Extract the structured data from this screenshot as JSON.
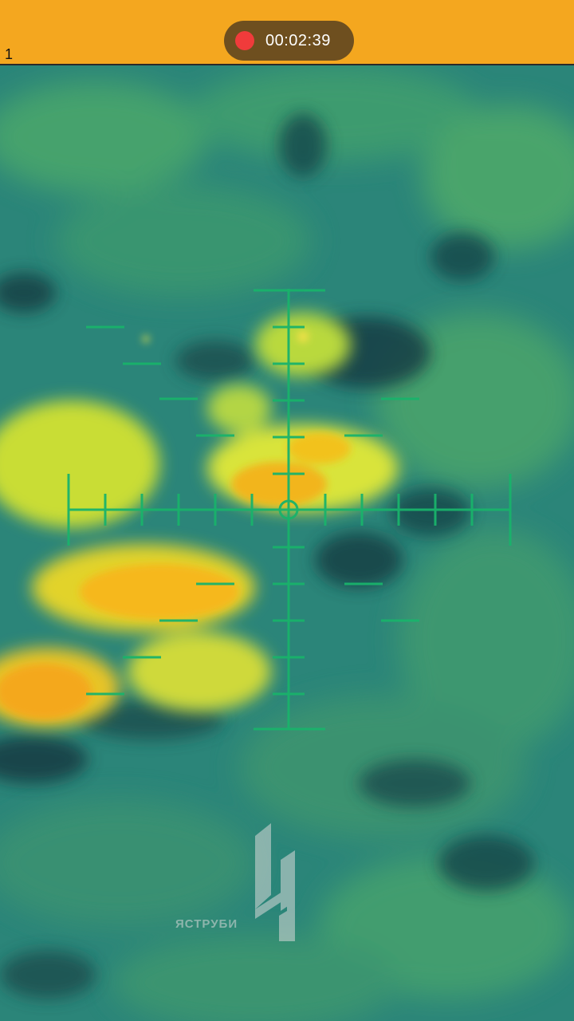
{
  "status_bar": {
    "corner_label": "1",
    "recording_time": "00:02:39",
    "recording_indicator_color": "#f03b3b",
    "bar_color": "#f4a71f"
  },
  "feed": {
    "palette": [
      "#1f6b68",
      "#2d8a7e",
      "#6fbf5a",
      "#d9e63a",
      "#f7c81c",
      "#f49a1e"
    ],
    "overlay_color": "#19b36b"
  },
  "watermark": {
    "text": "ЯСТРУБИ",
    "logo_icon": "double-bar-logo-icon"
  }
}
